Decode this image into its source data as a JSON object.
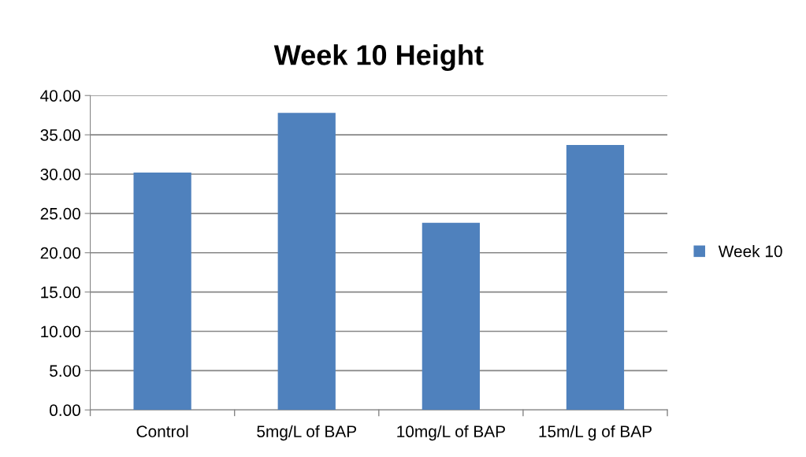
{
  "chart_data": {
    "type": "bar",
    "title": "Week 10 Height",
    "categories": [
      "Control",
      "5mg/L of BAP",
      "10mg/L of BAP",
      "15m/L g of BAP"
    ],
    "series": [
      {
        "name": "Week 10",
        "color": "#4f81bd",
        "values": [
          30.2,
          37.8,
          23.8,
          33.7
        ]
      }
    ],
    "ylim": [
      0,
      40
    ],
    "yticks": [
      {
        "value": 0,
        "label": "0.00"
      },
      {
        "value": 5,
        "label": "5.00"
      },
      {
        "value": 10,
        "label": "10.00"
      },
      {
        "value": 15,
        "label": "15.00"
      },
      {
        "value": 20,
        "label": "20.00"
      },
      {
        "value": 25,
        "label": "25.00"
      },
      {
        "value": 30,
        "label": "30.00"
      },
      {
        "value": 35,
        "label": "35.00"
      },
      {
        "value": 40,
        "label": "40.00"
      }
    ],
    "grid": "y",
    "legend": "right"
  }
}
